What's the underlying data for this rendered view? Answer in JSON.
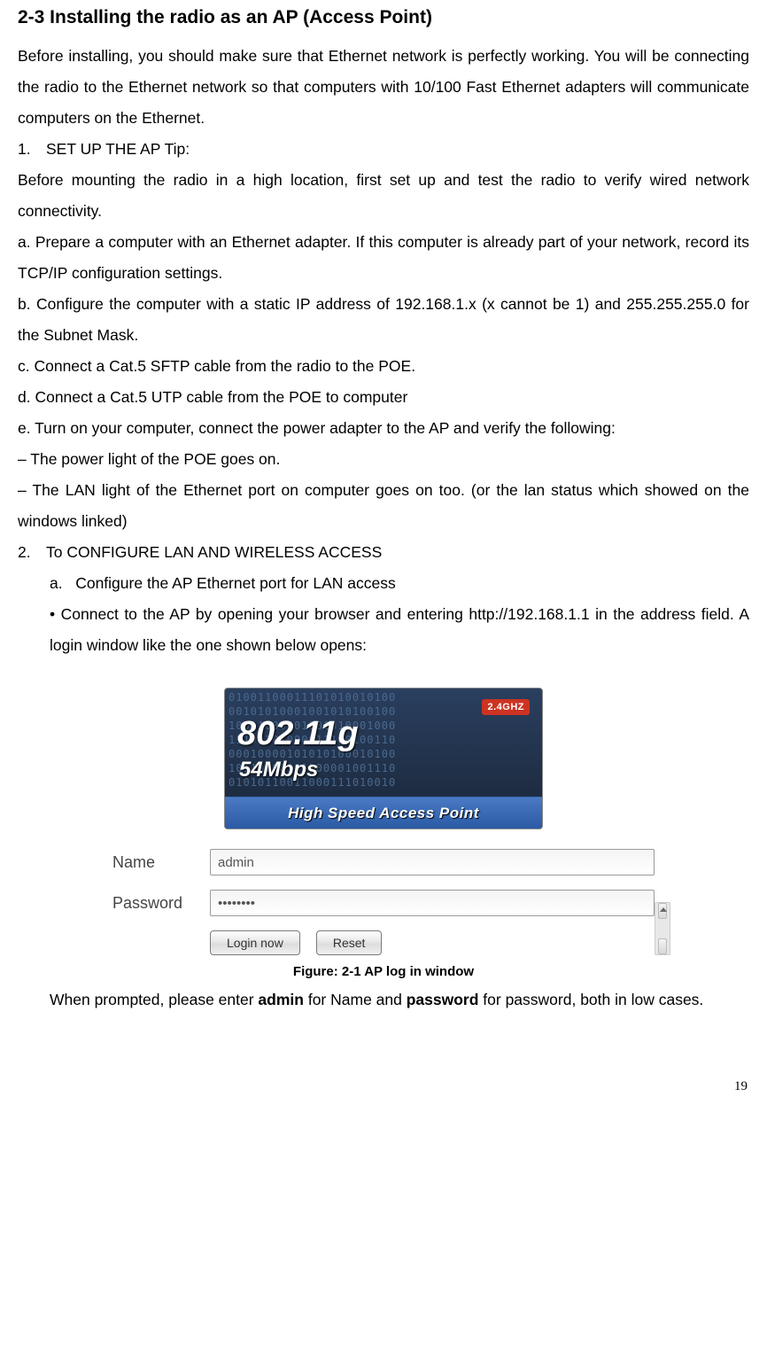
{
  "heading": "2-3    Installing the radio as an AP (Access Point)",
  "para_intro": "Before installing, you should make sure that Ethernet network is perfectly working. You will be connecting the radio to the Ethernet network so that computers with 10/100 Fast Ethernet adapters will communicate computers on the Ethernet.",
  "item1_num": "1.",
  "item1_text": "SET UP THE AP Tip:",
  "para_tip": "Before mounting the radio in a high location, first set up and test the radio to verify wired network connectivity.",
  "para_a": "a. Prepare a computer with an Ethernet adapter. If this computer is already part of your network, record its TCP/IP configuration settings.",
  "para_b": "b. Configure the computer with a static IP address of 192.168.1.x (x cannot be 1) and 255.255.255.0 for the Subnet Mask.",
  "para_c": "c. Connect a Cat.5 SFTP cable from the radio to the POE.",
  "para_d": "d. Connect a Cat.5 UTP cable from the POE to computer",
  "para_e": "e. Turn on your computer, connect the power adapter to the AP and verify the following:",
  "para_dash1": "– The power light of the POE goes on.",
  "para_dash2": "– The LAN light of the Ethernet port on computer goes on too. (or the lan status which showed on the windows linked)",
  "item2_num": "2.",
  "item2_text": "To CONFIGURE LAN AND WIRELESS ACCESS",
  "sub_a_num": "a.",
  "sub_a_text": "Configure the AP Ethernet port for LAN access",
  "bullet_connect": " • Connect to the AP by opening your browser and entering http://192.168.1.1 in the address field. A login window like the one shown below opens:",
  "banner": {
    "badge": "2.4GHZ",
    "main": "802.11g",
    "sub": "54Mbps",
    "strip": "High Speed Access Point",
    "binary": "01001100011101010010100\n00101010001001010100100\n10011000101001010001000\n11100101000011100100110\n00010000101010100010100\n10110100101100001001110\n01010110011000111010010"
  },
  "login": {
    "name_label": "Name",
    "name_value": "admin",
    "password_label": "Password",
    "password_value": "••••••••",
    "login_button": "Login now",
    "reset_button": "Reset"
  },
  "figure_caption": "Figure: 2-1 AP log in window",
  "post_fig_pre": "When prompted, please enter ",
  "post_fig_bold1": "admin",
  "post_fig_mid": " for Name and ",
  "post_fig_bold2": "password",
  "post_fig_post": " for password, both in low cases.",
  "page_number": "19"
}
